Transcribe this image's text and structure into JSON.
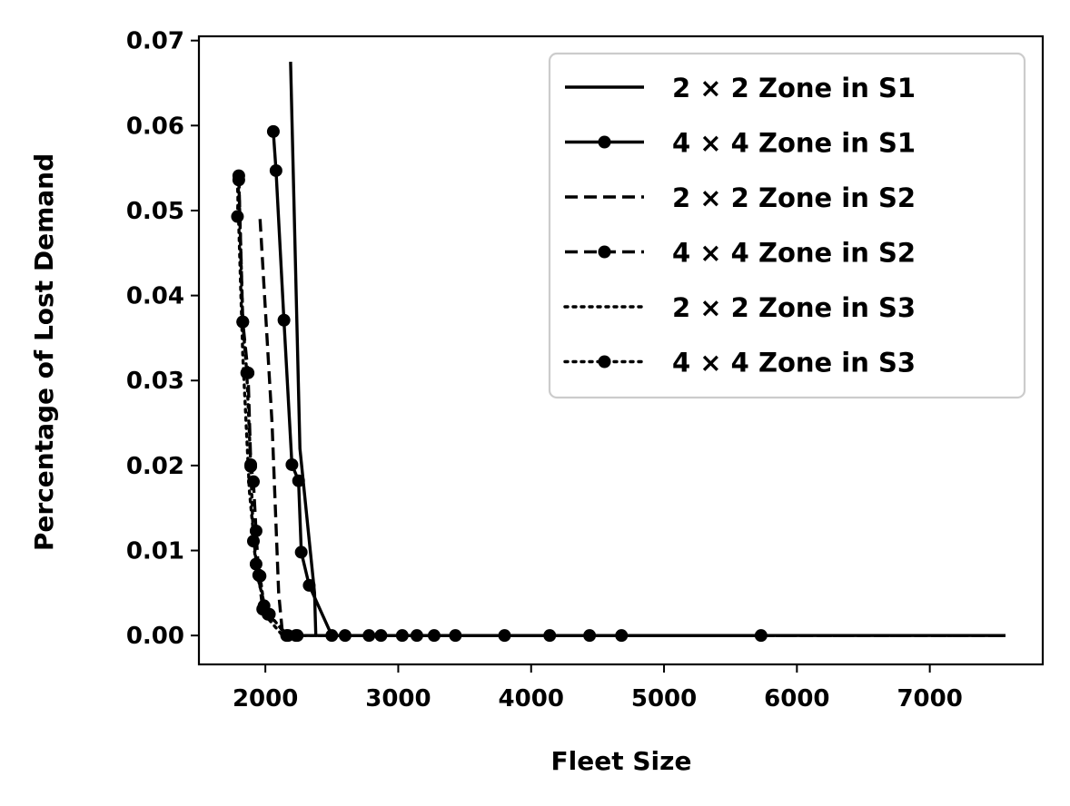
{
  "chart_data": {
    "type": "line",
    "xlabel": "Fleet Size",
    "ylabel": "Percentage of Lost Demand",
    "xlim": [
      1500,
      7850
    ],
    "ylim": [
      -0.0034,
      0.0705
    ],
    "xticks": [
      2000,
      3000,
      4000,
      5000,
      6000,
      7000
    ],
    "yticks": [
      0.0,
      0.01,
      0.02,
      0.03,
      0.04,
      0.05,
      0.06,
      0.07
    ],
    "xtick_labels": [
      "2000",
      "3000",
      "4000",
      "5000",
      "6000",
      "7000"
    ],
    "ytick_labels": [
      "0.00",
      "0.01",
      "0.02",
      "0.03",
      "0.04",
      "0.05",
      "0.06",
      "0.07"
    ],
    "grid": false,
    "legend_position": "top-right",
    "series": [
      {
        "name": "2 × 2 Zone in S1",
        "linestyle": "solid",
        "marker": false,
        "color": "#000000",
        "x": [
          2190,
          2260,
          2370,
          2380,
          7570
        ],
        "y": [
          0.0675,
          0.022,
          0.005,
          0.0,
          0.0
        ]
      },
      {
        "name": "4 × 4 Zone in S1",
        "linestyle": "solid",
        "marker": true,
        "color": "#000000",
        "x": [
          2060,
          2080,
          2140,
          2200,
          2250,
          2270,
          2330,
          2500,
          2600,
          2780,
          2870,
          3030,
          3140,
          3270,
          3430,
          3800,
          4140,
          4440,
          4680,
          5730
        ],
        "y": [
          0.0593,
          0.0547,
          0.0371,
          0.0201,
          0.0182,
          0.0098,
          0.0059,
          0.0,
          0.0,
          0.0,
          0.0,
          0.0,
          0.0,
          0.0,
          0.0,
          0.0,
          0.0,
          0.0,
          0.0,
          0.0
        ]
      },
      {
        "name": "2 × 2 Zone in S2",
        "linestyle": "dashed",
        "marker": false,
        "color": "#000000",
        "x": [
          1960,
          2050,
          2100,
          2130,
          7570
        ],
        "y": [
          0.049,
          0.025,
          0.005,
          0.0,
          0.0
        ]
      },
      {
        "name": "4 × 4 Zone in S2",
        "linestyle": "dashed",
        "marker": true,
        "color": "#000000",
        "x": [
          1800,
          1830,
          1870,
          1890,
          1910,
          1930,
          1950,
          1980,
          2020,
          2170,
          2230
        ],
        "y": [
          0.0541,
          0.0369,
          0.0309,
          0.0201,
          0.0181,
          0.0123,
          0.0071,
          0.0031,
          0.0025,
          0.0,
          0.0
        ]
      },
      {
        "name": "2 × 2 Zone in S3",
        "linestyle": "dotted",
        "marker": false,
        "color": "#000000",
        "x": [
          1790,
          1830,
          1880,
          1940,
          2020,
          2130,
          2300,
          7570
        ],
        "y": [
          0.0535,
          0.033,
          0.017,
          0.007,
          0.002,
          0.0,
          0.0,
          0.0
        ]
      },
      {
        "name": "4 × 4 Zone in S3",
        "linestyle": "dotted",
        "marker": true,
        "color": "#000000",
        "x": [
          1790,
          1800,
          1830,
          1860,
          1890,
          1910,
          1930,
          1960,
          1990,
          2030,
          2160,
          2240
        ],
        "y": [
          0.0493,
          0.0536,
          0.0369,
          0.0309,
          0.0199,
          0.0111,
          0.0084,
          0.007,
          0.0035,
          0.0025,
          0.0,
          0.0
        ]
      }
    ]
  }
}
